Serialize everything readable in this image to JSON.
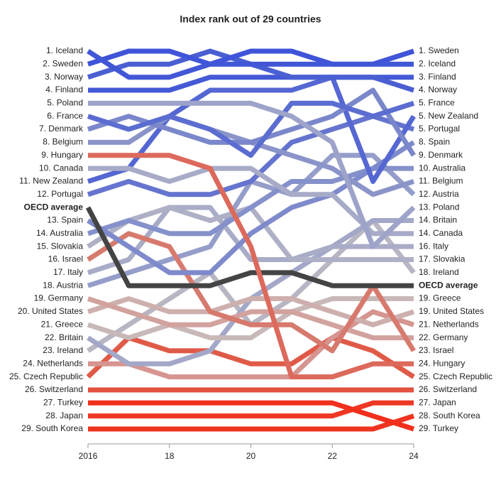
{
  "chart_data": {
    "type": "bump",
    "title": "Index rank out of 29 countries",
    "x": [
      2016,
      2017,
      2018,
      2019,
      2020,
      2021,
      2022,
      2023,
      2024
    ],
    "xlim": [
      2016,
      2024
    ],
    "xticks": [
      2016,
      {
        "value": 2018,
        "label": "18"
      },
      {
        "value": 2020,
        "label": "20"
      },
      {
        "value": 2022,
        "label": "22"
      },
      {
        "value": 2024,
        "label": "24"
      }
    ],
    "ylim": [
      1,
      30
    ],
    "highlight": 12,
    "left_labels": [
      "1. Iceland",
      "2. Sweden",
      "3. Norway",
      "4. Finland",
      "5. Poland",
      "6. France",
      "7. Denmark",
      "8. Belgium",
      "9. Hungary",
      "10. Canada",
      "11. New Zealand",
      "12. Portugal",
      "OECD average",
      "13. Spain",
      "14. Australia",
      "15. Slovakia",
      "16. Israel",
      "17. Italy",
      "18. Austria",
      "19. Germany",
      "20. United States",
      "21. Greece",
      "22. Britain",
      "23. Ireland",
      "24. Netherlands",
      "25. Czech Republic",
      "26. Switzerland",
      "27. Turkey",
      "28. Japan",
      "29. South Korea"
    ],
    "right_labels": [
      "1. Sweden",
      "2. Iceland",
      "3. Finland",
      "4. Norway",
      "5. France",
      "5. New Zealand",
      "5. Portugal",
      "8. Spain",
      "9. Denmark",
      "10. Australia",
      "11. Belgium",
      "12. Austria",
      "13. Poland",
      "14. Britain",
      "14. Canada",
      "16. Italy",
      "17. Slovakia",
      "18. Ireland",
      "OECD average",
      "19. Greece",
      "19. United States",
      "21. Netherlands",
      "22. Germany",
      "23. Israel",
      "24. Hungary",
      "25. Czech Republic",
      "26. Switzerland",
      "27. Japan",
      "28. South Korea",
      "29. Turkey"
    ],
    "series": [
      {
        "color": "#4257d6",
        "values": [
          1,
          3,
          3,
          2,
          2,
          2,
          2,
          2,
          2
        ]
      },
      {
        "color": "#3f54d8",
        "values": [
          2,
          1,
          1,
          2,
          1,
          1,
          2,
          2,
          1
        ]
      },
      {
        "color": "#4a5fd2",
        "values": [
          3,
          2,
          2,
          1,
          2,
          3,
          3,
          3,
          4
        ]
      },
      {
        "color": "#4459d5",
        "values": [
          4,
          4,
          4,
          3,
          3,
          3,
          3,
          3,
          3
        ]
      },
      {
        "color": "#9da3c9",
        "values": [
          5,
          5,
          5,
          5,
          5,
          6,
          8,
          16,
          13
        ]
      },
      {
        "color": "#5b6dd0",
        "values": [
          6,
          7,
          6,
          7,
          9,
          5,
          5,
          6,
          5
        ]
      },
      {
        "color": "#7b87cb",
        "values": [
          7,
          6,
          7,
          8,
          8,
          7,
          6,
          4,
          9
        ]
      },
      {
        "color": "#8a94c9",
        "values": [
          8,
          8,
          6,
          7,
          8,
          9,
          10,
          12,
          11
        ]
      },
      {
        "color": "#dc6a5c",
        "values": [
          9,
          9,
          9,
          10,
          16,
          26,
          26,
          25,
          25
        ]
      },
      {
        "color": "#a7abc8",
        "values": [
          10,
          10,
          11,
          10,
          10,
          12,
          12,
          15,
          15
        ]
      },
      {
        "color": "#5567d2",
        "values": [
          11,
          10,
          6,
          4,
          4,
          4,
          3,
          11,
          6
        ]
      },
      {
        "color": "#6574ce",
        "values": [
          12,
          11,
          12,
          12,
          11,
          8,
          7,
          6,
          7
        ]
      },
      {
        "color": "#444444",
        "values": [
          13,
          19,
          19,
          19,
          18,
          18,
          19,
          19,
          19
        ]
      },
      {
        "color": "#7e8acb",
        "values": [
          14,
          16,
          18,
          18,
          15,
          13,
          12,
          10,
          8
        ]
      },
      {
        "color": "#8591ca",
        "values": [
          15,
          14,
          15,
          15,
          13,
          11,
          11,
          10,
          10
        ]
      },
      {
        "color": "#aeb0c6",
        "values": [
          16,
          14,
          13,
          14,
          13,
          17,
          17,
          17,
          17
        ]
      },
      {
        "color": "#d77a6e",
        "values": [
          17,
          15,
          16,
          21,
          22,
          22,
          24,
          19,
          24
        ]
      },
      {
        "color": "#a9acc7",
        "values": [
          18,
          17,
          13,
          13,
          17,
          17,
          16,
          16,
          16
        ]
      },
      {
        "color": "#959dca",
        "values": [
          19,
          18,
          17,
          16,
          11,
          12,
          9,
          9,
          12
        ]
      },
      {
        "color": "#d2a29f",
        "values": [
          20,
          21,
          22,
          22,
          21,
          21,
          22,
          23,
          23
        ]
      },
      {
        "color": "#cdb0ae",
        "values": [
          21,
          20,
          21,
          21,
          20,
          20,
          21,
          22,
          21
        ]
      },
      {
        "color": "#c8b8b8",
        "values": [
          22,
          23,
          22,
          23,
          23,
          21,
          20,
          20,
          20
        ]
      },
      {
        "color": "#a3a8c8",
        "values": [
          23,
          25,
          25,
          24,
          20,
          18,
          16,
          14,
          14
        ]
      },
      {
        "color": "#b7b6c2",
        "values": [
          24,
          22,
          20,
          18,
          22,
          20,
          17,
          14,
          18
        ]
      },
      {
        "color": "#d69590",
        "values": [
          25,
          25,
          26,
          26,
          26,
          26,
          23,
          21,
          22
        ]
      },
      {
        "color": "#e05a48",
        "values": [
          26,
          23,
          24,
          24,
          25,
          25,
          23,
          24,
          26
        ]
      },
      {
        "color": "#e3513f",
        "values": [
          27,
          27,
          27,
          27,
          27,
          27,
          27,
          27,
          27
        ]
      },
      {
        "color": "#f0301c",
        "values": [
          28,
          28,
          28,
          28,
          28,
          28,
          28,
          29,
          30
        ]
      },
      {
        "color": "#ee3824",
        "values": [
          29,
          29,
          29,
          29,
          29,
          29,
          29,
          28,
          28
        ]
      },
      {
        "color": "#ee3420",
        "values": [
          30,
          30,
          30,
          30,
          30,
          30,
          30,
          30,
          29
        ]
      }
    ]
  }
}
